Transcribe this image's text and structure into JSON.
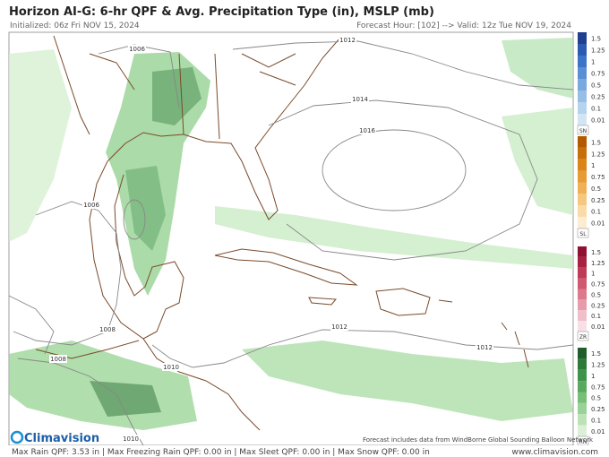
{
  "header": {
    "title": "Horizon AI-G: 6-hr QPF & Avg. Precipitation Type (in), MSLP (mb)",
    "initialized": "Initialized: 06z Fri NOV 15, 2024",
    "forecast": "Forecast Hour: [102] --> Valid: 12z Tue NOV 19, 2024"
  },
  "map": {
    "isobar_labels": [
      "1012",
      "1006",
      "1014",
      "1016",
      "1006",
      "1008",
      "1008",
      "1010",
      "1012",
      "1012",
      "1010"
    ],
    "source_note": "Forecast includes data from WindBorne Global Sounding Balloon Network"
  },
  "legend": {
    "bars": [
      {
        "code": "SN",
        "ticks": [
          1.5,
          1.25,
          1,
          0.75,
          0.5,
          0.25,
          0.1,
          0.01
        ]
      },
      {
        "code": "SL",
        "ticks": [
          1.5,
          1.25,
          1,
          0.75,
          0.5,
          0.25,
          0.1,
          0.01
        ]
      },
      {
        "code": "ZR",
        "ticks": [
          1.5,
          1.25,
          1,
          0.75,
          0.5,
          0.25,
          0.1,
          0.01
        ]
      },
      {
        "code": "RN",
        "ticks": [
          1.5,
          1.25,
          1,
          0.75,
          0.5,
          0.25,
          0.1,
          0.01
        ]
      }
    ]
  },
  "footer": {
    "logo": "Climavision",
    "stats": "Max Rain QPF: 3.53 in  |  Max Freezing Rain QPF: 0.00 in  |  Max Sleet QPF: 0.00 in  |  Max Snow QPF: 0.00 in",
    "url": "www.climavision.com"
  }
}
